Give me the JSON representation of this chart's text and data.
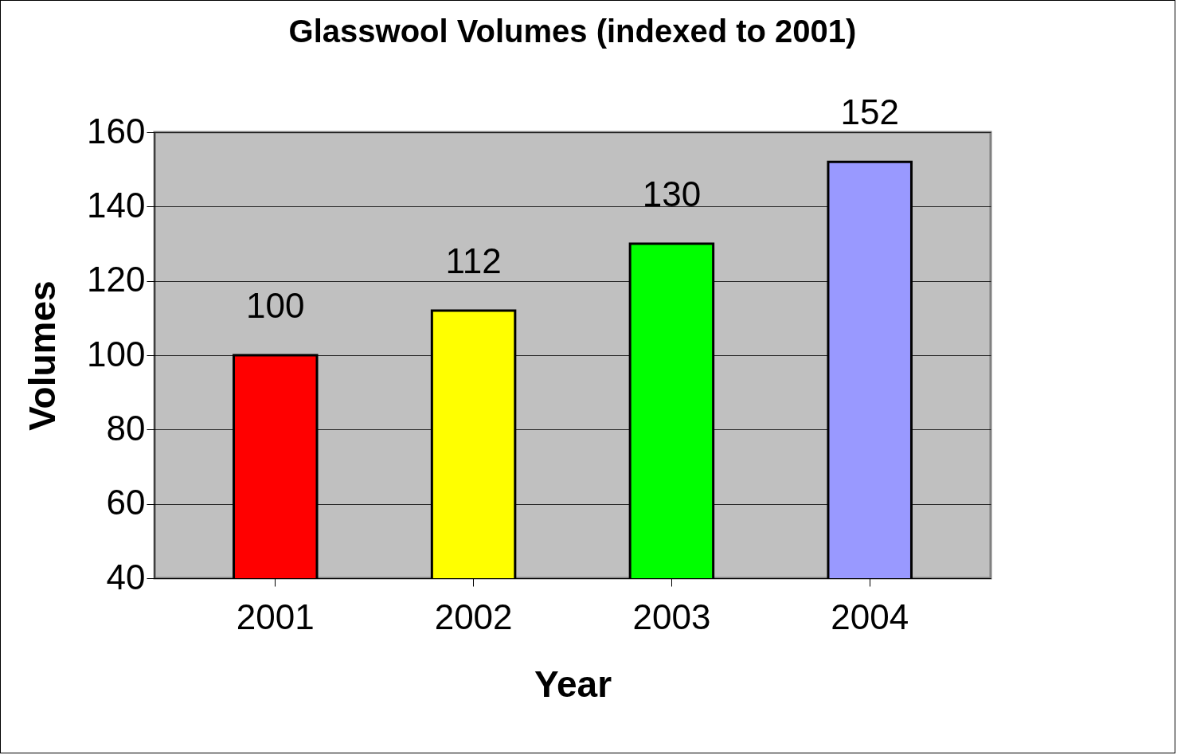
{
  "chart_data": {
    "type": "bar",
    "title": "Glasswool Volumes (indexed to 2001)",
    "xlabel": "Year",
    "ylabel": "Volumes",
    "categories": [
      "2001",
      "2002",
      "2003",
      "2004"
    ],
    "values": [
      100,
      112,
      130,
      152
    ],
    "colors": [
      "#ff0000",
      "#ffff00",
      "#00ff00",
      "#9999ff"
    ],
    "ylim": [
      40,
      160
    ],
    "yticks": [
      40,
      60,
      80,
      100,
      120,
      140,
      160
    ],
    "grid": "y",
    "data_labels": true
  }
}
